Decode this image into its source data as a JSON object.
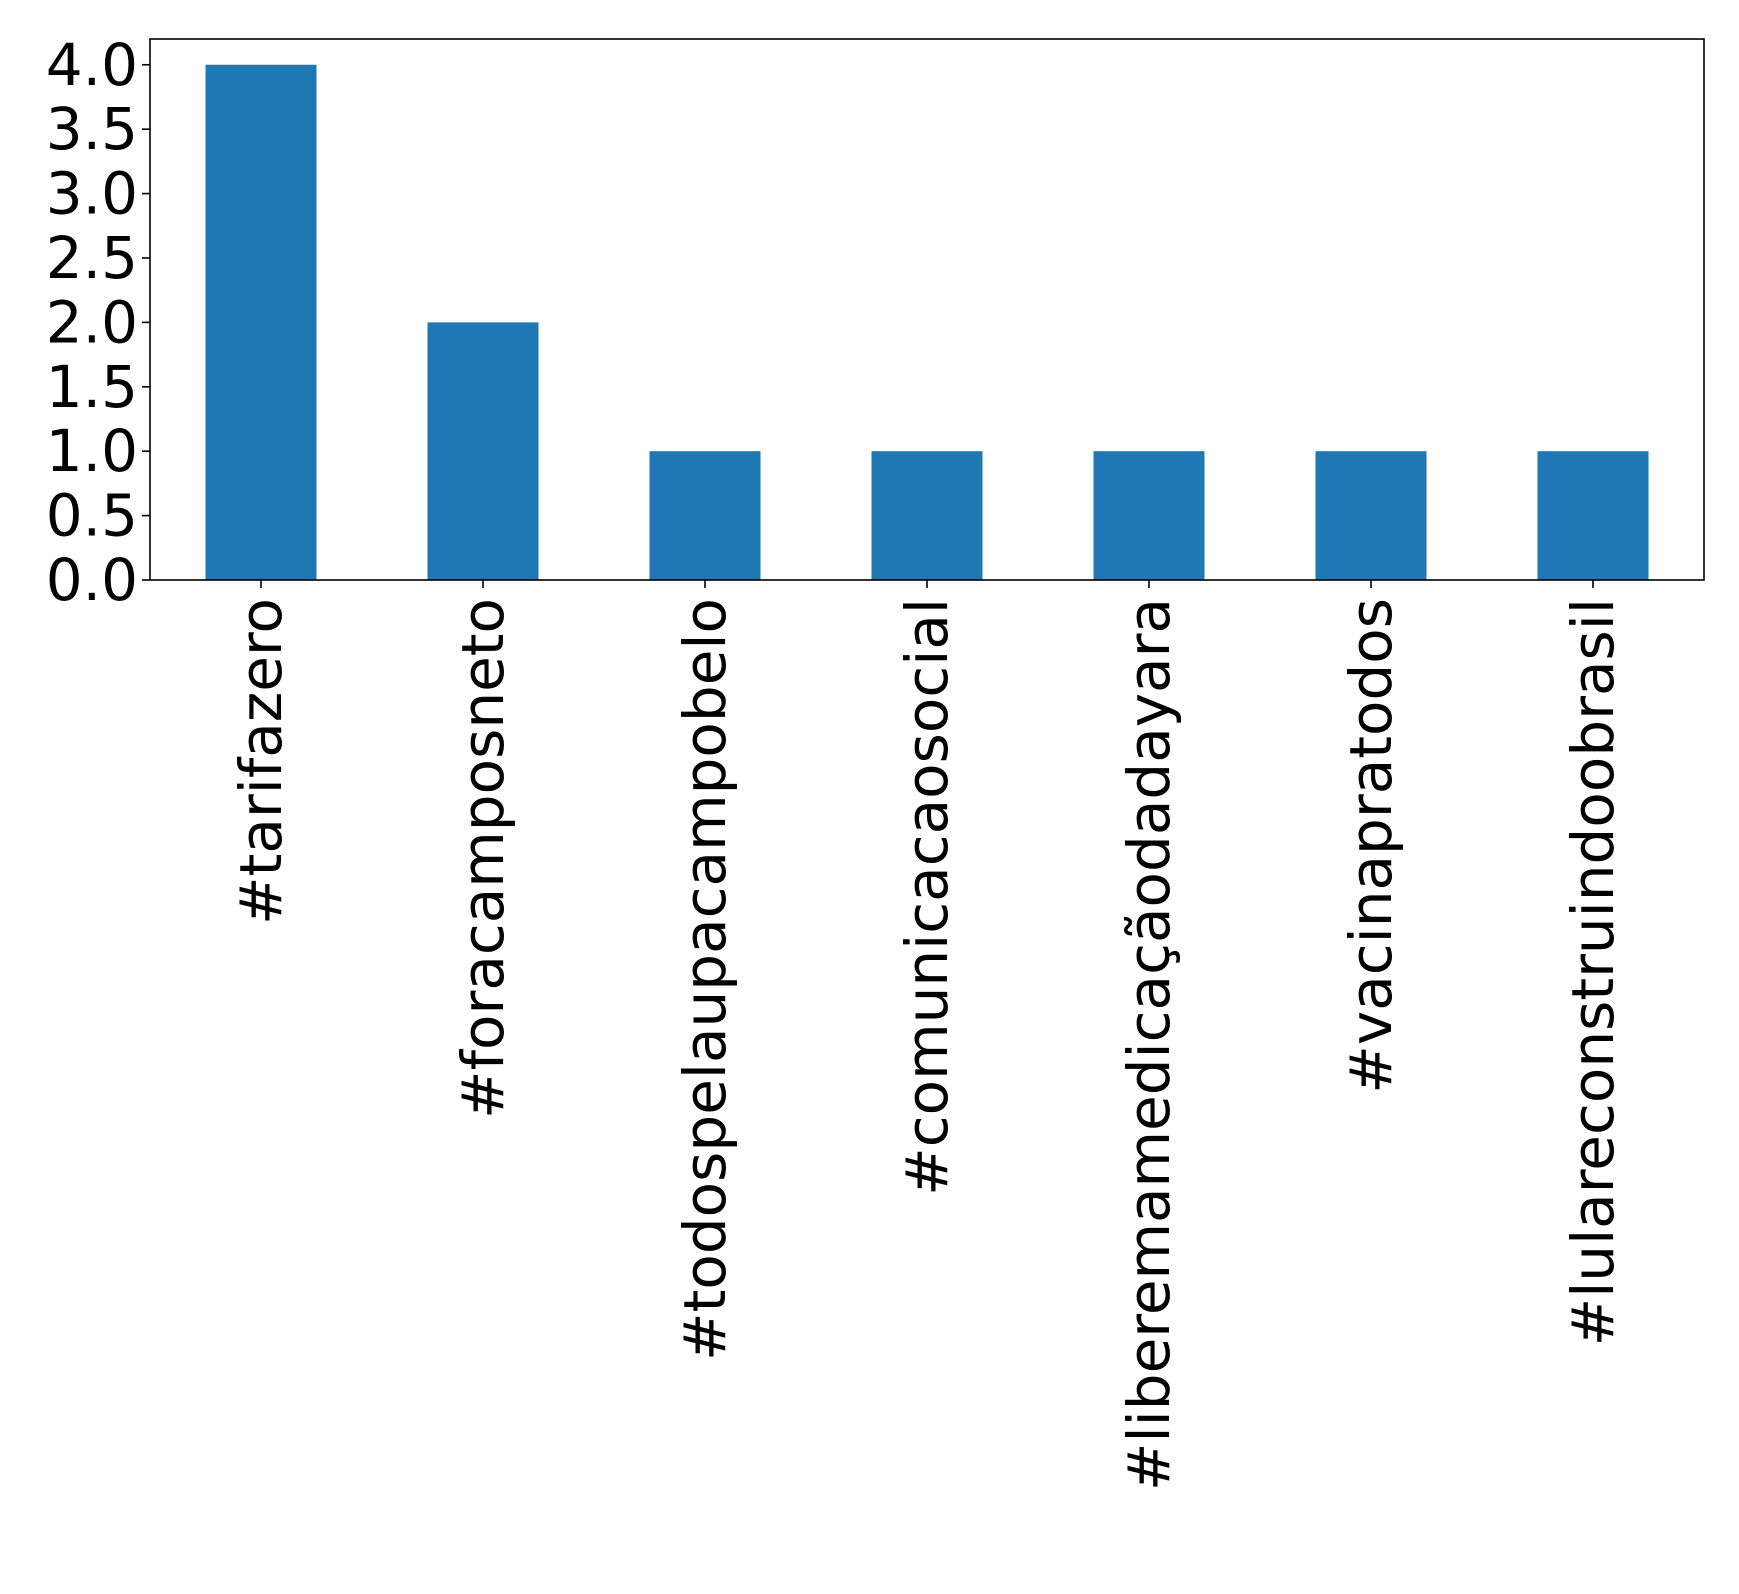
{
  "chart_data": {
    "type": "bar",
    "title": "",
    "xlabel": "",
    "ylabel": "",
    "categories": [
      "#tarifazero",
      "#foracamposneto",
      "#todospelaupacampobelo",
      "#comunicacaosocial",
      "#liberemamedicaçãodadayara",
      "#vacinapratodos",
      "#lulareconstruindoobrasil"
    ],
    "values": [
      4,
      2,
      1,
      1,
      1,
      1,
      1
    ],
    "ylim": [
      0,
      4.2
    ],
    "yticks": [
      0.0,
      0.5,
      1.0,
      1.5,
      2.0,
      2.5,
      3.0,
      3.5,
      4.0
    ],
    "ytick_labels": [
      "0.0",
      "0.5",
      "1.0",
      "1.5",
      "2.0",
      "2.5",
      "3.0",
      "3.5",
      "4.0"
    ],
    "grid": false,
    "legend": "none",
    "bar_color": "#1f77b4"
  }
}
